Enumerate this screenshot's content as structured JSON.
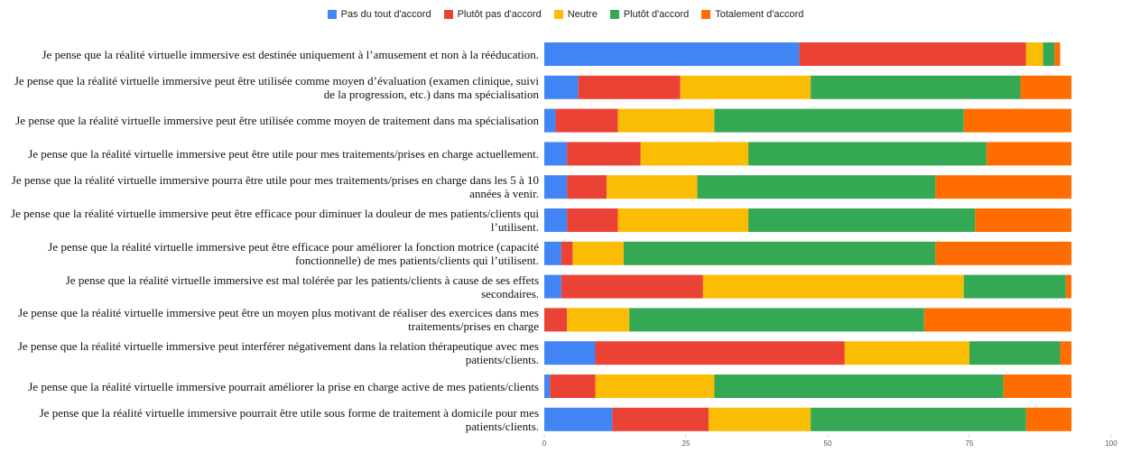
{
  "chart_data": {
    "type": "stacked_barh",
    "categories": [
      "Je pense que la réalité virtuelle immersive est destinée uniquement à l’amusement et non à la rééducation.",
      "Je pense que la réalité virtuelle immersive peut être utilisée comme moyen d’évaluation (examen clinique, suivi de la progression, etc.) dans ma spécialisation",
      "Je pense que la réalité virtuelle immersive peut être utilisée comme moyen de traitement dans ma spécialisation",
      "Je pense que la réalité virtuelle immersive peut être utile pour mes traitements/prises en charge actuellement.",
      "Je pense que la réalité virtuelle immersive pourra être utile pour mes traitements/prises en charge dans les 5 à 10 années à venir.",
      "Je pense que la réalité virtuelle immersive peut être efficace pour diminuer la douleur de mes patients/clients qui l’utilisent.",
      "Je pense que la réalité virtuelle immersive peut être efficace pour améliorer la fonction motrice (capacité fonctionnelle) de mes patients/clients qui l’utilisent.",
      "Je pense que la réalité virtuelle immersive est mal tolérée par les patients/clients à cause de ses effets secondaires.",
      "Je pense que la réalité virtuelle immersive peut être un moyen plus motivant de réaliser des exercices dans mes traitements/prises en charge",
      "Je pense que la réalité virtuelle immersive peut interférer négativement dans la relation thérapeutique avec mes patients/clients.",
      "Je pense que la réalité virtuelle immersive pourrait améliorer la prise en charge active de mes patients/clients",
      "Je pense que la réalité virtuelle immersive pourrait être utile sous forme de traitement à domicile pour mes patients/clients."
    ],
    "series": [
      {
        "name": "Pas du tout d'accord",
        "color": "#4285f4",
        "values": [
          45,
          6,
          2,
          4,
          4,
          4,
          3,
          3,
          0,
          9,
          1,
          12
        ]
      },
      {
        "name": "Plutôt pas d'accord",
        "color": "#ea4335",
        "values": [
          40,
          18,
          11,
          13,
          7,
          9,
          2,
          25,
          4,
          44,
          8,
          17
        ]
      },
      {
        "name": "Neutre",
        "color": "#fbbc04",
        "values": [
          3,
          23,
          17,
          19,
          16,
          23,
          9,
          46,
          11,
          22,
          21,
          18
        ]
      },
      {
        "name": "Plutôt d'accord",
        "color": "#34a853",
        "values": [
          2,
          37,
          44,
          42,
          42,
          40,
          55,
          18,
          52,
          16,
          51,
          38
        ]
      },
      {
        "name": "Totalement d'accord",
        "color": "#ff6d01",
        "values": [
          1,
          9,
          19,
          15,
          24,
          17,
          24,
          1,
          26,
          2,
          12,
          8
        ]
      }
    ],
    "xlim": [
      0,
      100
    ],
    "xticks": [
      0,
      25,
      50,
      75,
      100
    ],
    "legend": "top"
  }
}
